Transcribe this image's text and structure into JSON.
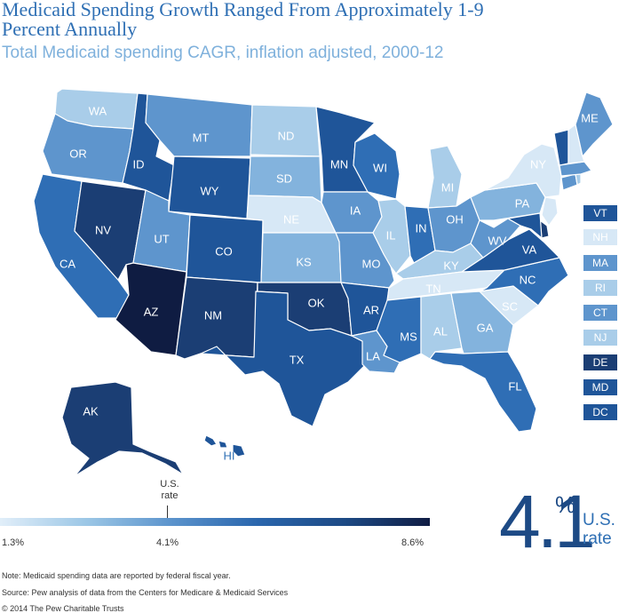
{
  "title": "Medicaid Spending Growth Ranged From Approximately 1-9 Percent Annually",
  "subtitle": "Total Medicaid spending CAGR, inflation adjusted, 2000-12",
  "colors": {
    "c1": "#d7e8f6",
    "c2": "#a9cde9",
    "c3": "#83b3dd",
    "c4": "#5e95cd",
    "c5": "#2f6eb5",
    "c6": "#1f5599",
    "c7": "#1b3e74",
    "c8": "#0f1c42"
  },
  "states": {
    "WA": "WA",
    "OR": "OR",
    "CA": "CA",
    "NV": "NV",
    "ID": "ID",
    "MT": "MT",
    "WY": "WY",
    "UT": "UT",
    "AZ": "AZ",
    "CO": "CO",
    "NM": "NM",
    "ND": "ND",
    "SD": "SD",
    "NE": "NE",
    "KS": "KS",
    "OK": "OK",
    "TX": "TX",
    "MN": "MN",
    "IA": "IA",
    "MO": "MO",
    "AR": "AR",
    "LA": "LA",
    "WI": "WI",
    "IL": "IL",
    "MI": "MI",
    "IN": "IN",
    "OH": "OH",
    "KY": "KY",
    "TN": "TN",
    "MS": "MS",
    "AL": "AL",
    "GA": "GA",
    "FL": "FL",
    "SC": "SC",
    "NC": "NC",
    "VA": "VA",
    "WV": "WV",
    "PA": "PA",
    "NY": "NY",
    "ME": "ME",
    "AK": "AK",
    "HI": "HI"
  },
  "legend_states": [
    "VT",
    "NH",
    "MA",
    "RI",
    "CT",
    "NJ",
    "DE",
    "MD",
    "DC"
  ],
  "scale": {
    "marker": "U.S. rate",
    "min": "1.3%",
    "mid": "4.1%",
    "max": "8.6%"
  },
  "us_rate": {
    "value": "4.1",
    "pct": "%",
    "label": "U.S. rate"
  },
  "notes": {
    "note": "Note: Medicaid spending data are reported by federal fiscal year.",
    "source": "Source: Pew analysis of data from the Centers for Medicare & Medicaid Services",
    "copyright": "© 2014 The Pew Charitable Trusts"
  }
}
